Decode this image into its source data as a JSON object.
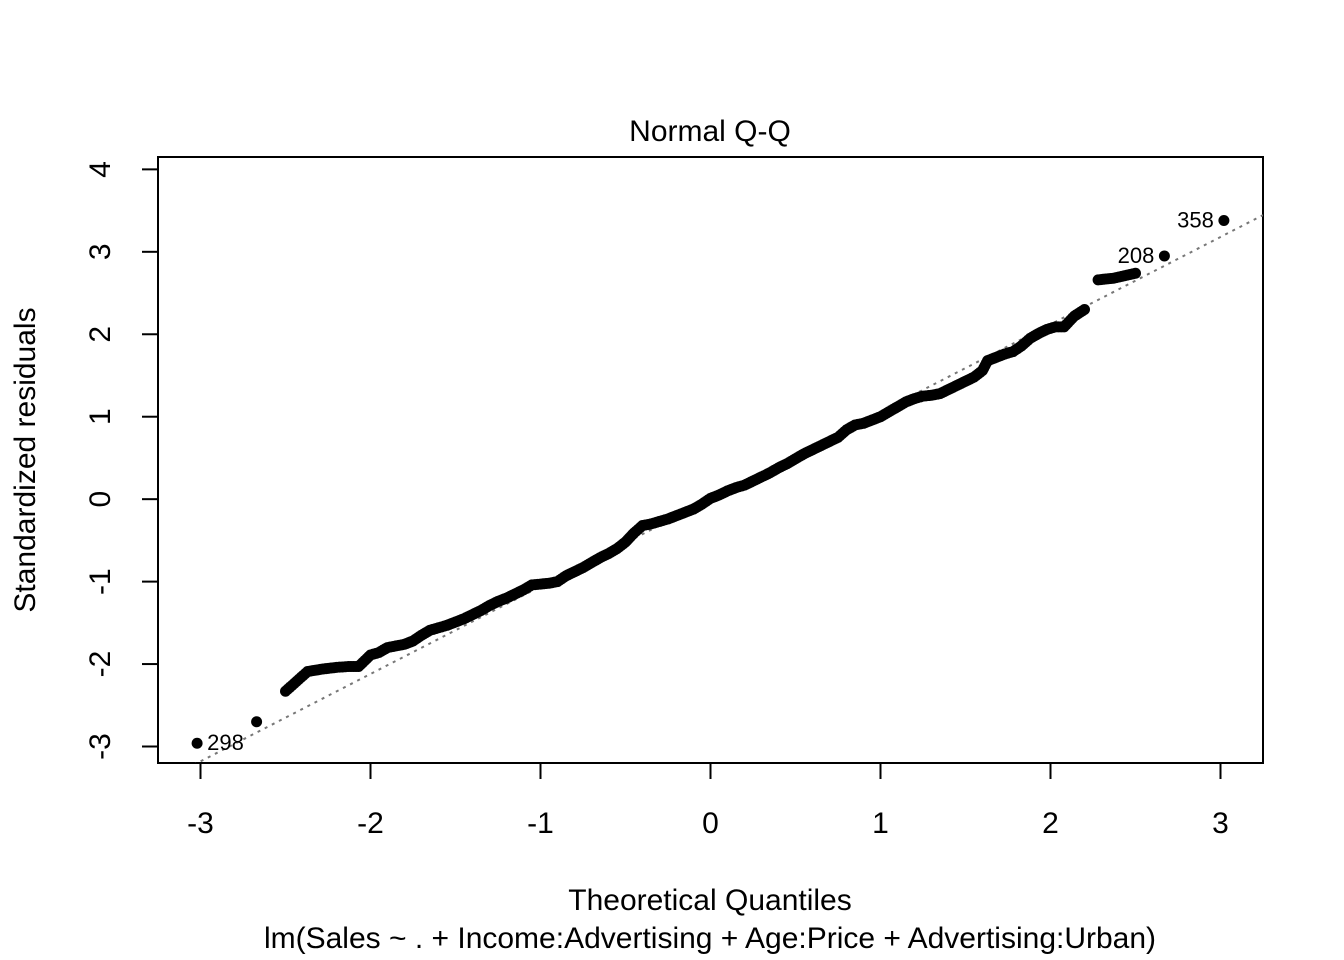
{
  "chart_data": {
    "type": "scatter",
    "title": "Normal Q-Q",
    "xlabel": "Theoretical Quantiles",
    "ylabel": "Standardized residuals",
    "subtitle": "lm(Sales ~ . + Income:Advertising + Age:Price + Advertising:Urban)",
    "xlim": [
      -3.25,
      3.25
    ],
    "ylim": [
      -3.2,
      4.15
    ],
    "x_ticks": [
      -3,
      -2,
      -1,
      0,
      1,
      2,
      3
    ],
    "y_ticks": [
      -3,
      -2,
      -1,
      0,
      1,
      2,
      3,
      4
    ],
    "reference_line": {
      "style": "dotted",
      "color": "#777777",
      "intercept": 0.0,
      "slope": 1.06
    },
    "labeled_points": [
      {
        "label": "358",
        "x": 3.02,
        "y": 3.38
      },
      {
        "label": "208",
        "x": 2.67,
        "y": 2.95
      },
      {
        "label": "298",
        "x": -3.02,
        "y": -2.96
      }
    ],
    "points": [
      [
        -3.02,
        -2.96
      ],
      [
        -2.67,
        -2.7
      ],
      [
        -2.5,
        -2.33
      ],
      [
        -2.37,
        -2.09
      ],
      [
        -2.28,
        -2.06
      ],
      [
        -2.2,
        -2.04
      ],
      [
        -2.13,
        -2.03
      ],
      [
        -2.07,
        -2.03
      ],
      [
        -2.0,
        -1.89
      ],
      [
        -1.95,
        -1.86
      ],
      [
        -1.9,
        -1.8
      ],
      [
        -1.85,
        -1.78
      ],
      [
        -1.8,
        -1.76
      ],
      [
        -1.75,
        -1.72
      ],
      [
        -1.7,
        -1.65
      ],
      [
        -1.65,
        -1.59
      ],
      [
        -1.6,
        -1.56
      ],
      [
        -1.55,
        -1.53
      ],
      [
        -1.5,
        -1.49
      ],
      [
        -1.45,
        -1.45
      ],
      [
        -1.4,
        -1.4
      ],
      [
        -1.35,
        -1.35
      ],
      [
        -1.3,
        -1.29
      ],
      [
        -1.25,
        -1.24
      ],
      [
        -1.2,
        -1.2
      ],
      [
        -1.15,
        -1.15
      ],
      [
        -1.1,
        -1.1
      ],
      [
        -1.05,
        -1.04
      ],
      [
        -1.0,
        -1.03
      ],
      [
        -0.95,
        -1.02
      ],
      [
        -0.9,
        -1.0
      ],
      [
        -0.85,
        -0.93
      ],
      [
        -0.8,
        -0.88
      ],
      [
        -0.75,
        -0.83
      ],
      [
        -0.7,
        -0.77
      ],
      [
        -0.65,
        -0.71
      ],
      [
        -0.6,
        -0.66
      ],
      [
        -0.55,
        -0.6
      ],
      [
        -0.5,
        -0.52
      ],
      [
        -0.45,
        -0.41
      ],
      [
        -0.4,
        -0.32
      ],
      [
        -0.35,
        -0.3
      ],
      [
        -0.3,
        -0.27
      ],
      [
        -0.25,
        -0.24
      ],
      [
        -0.2,
        -0.2
      ],
      [
        -0.15,
        -0.16
      ],
      [
        -0.1,
        -0.12
      ],
      [
        -0.05,
        -0.06
      ],
      [
        0.0,
        0.01
      ],
      [
        0.05,
        0.05
      ],
      [
        0.1,
        0.1
      ],
      [
        0.15,
        0.14
      ],
      [
        0.2,
        0.17
      ],
      [
        0.25,
        0.22
      ],
      [
        0.3,
        0.27
      ],
      [
        0.35,
        0.32
      ],
      [
        0.4,
        0.38
      ],
      [
        0.45,
        0.43
      ],
      [
        0.5,
        0.49
      ],
      [
        0.55,
        0.55
      ],
      [
        0.6,
        0.6
      ],
      [
        0.65,
        0.65
      ],
      [
        0.7,
        0.7
      ],
      [
        0.75,
        0.75
      ],
      [
        0.8,
        0.84
      ],
      [
        0.85,
        0.9
      ],
      [
        0.9,
        0.92
      ],
      [
        0.95,
        0.96
      ],
      [
        1.0,
        1.0
      ],
      [
        1.05,
        1.06
      ],
      [
        1.1,
        1.12
      ],
      [
        1.15,
        1.18
      ],
      [
        1.2,
        1.22
      ],
      [
        1.25,
        1.25
      ],
      [
        1.3,
        1.26
      ],
      [
        1.35,
        1.28
      ],
      [
        1.4,
        1.33
      ],
      [
        1.45,
        1.38
      ],
      [
        1.5,
        1.43
      ],
      [
        1.55,
        1.48
      ],
      [
        1.6,
        1.56
      ],
      [
        1.63,
        1.68
      ],
      [
        1.68,
        1.72
      ],
      [
        1.73,
        1.76
      ],
      [
        1.78,
        1.79
      ],
      [
        1.83,
        1.86
      ],
      [
        1.88,
        1.95
      ],
      [
        1.93,
        2.01
      ],
      [
        1.98,
        2.06
      ],
      [
        2.03,
        2.09
      ],
      [
        2.08,
        2.09
      ],
      [
        2.14,
        2.22
      ],
      [
        2.2,
        2.3
      ],
      [
        2.28,
        2.66
      ],
      [
        2.37,
        2.68
      ],
      [
        2.5,
        2.74
      ],
      [
        2.67,
        2.95
      ],
      [
        3.02,
        3.38
      ]
    ]
  }
}
